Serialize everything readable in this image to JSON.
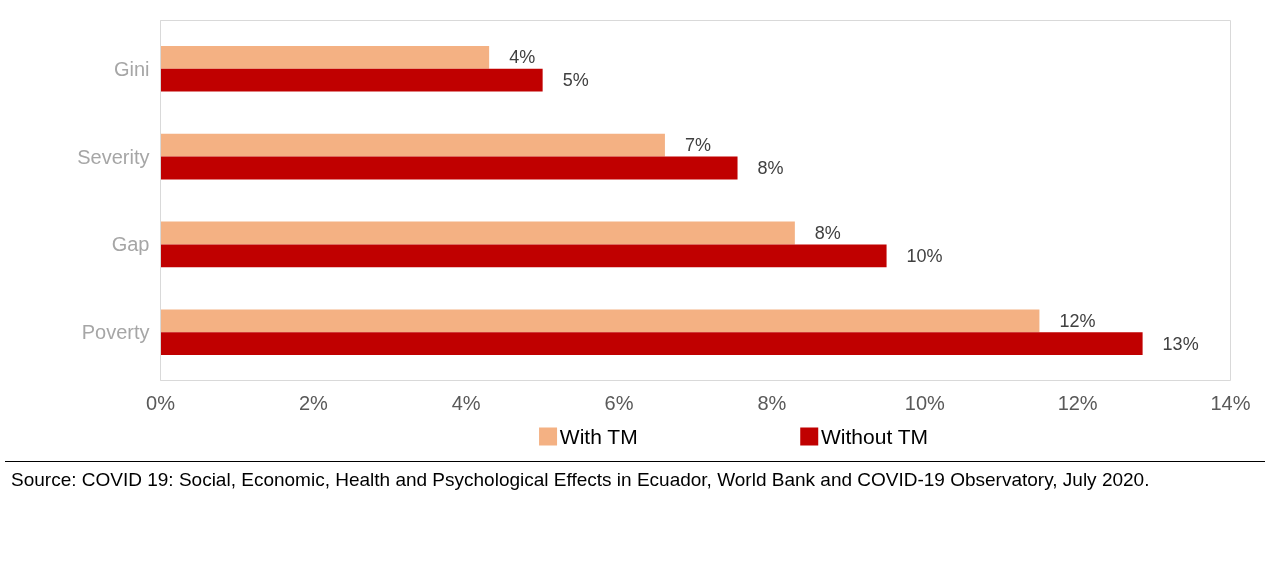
{
  "chart_data": {
    "type": "bar",
    "orientation": "horizontal",
    "categories": [
      "Gini",
      "Severity",
      "Gap",
      "Poverty"
    ],
    "series": [
      {
        "name": "With TM",
        "color": "#f4b183",
        "values": [
          4.3,
          6.6,
          8.3,
          11.5
        ],
        "value_labels": [
          "4%",
          "7%",
          "8%",
          "12%"
        ]
      },
      {
        "name": "Without TM",
        "color": "#c00000",
        "values": [
          5.0,
          7.55,
          9.5,
          12.85
        ],
        "value_labels": [
          "5%",
          "8%",
          "10%",
          "13%"
        ]
      }
    ],
    "xlim": [
      0,
      14
    ],
    "xticks": [
      {
        "value": 0,
        "label": "0%"
      },
      {
        "value": 2,
        "label": "2%"
      },
      {
        "value": 4,
        "label": "4%"
      },
      {
        "value": 6,
        "label": "6%"
      },
      {
        "value": 8,
        "label": "8%"
      },
      {
        "value": 10,
        "label": "10%"
      },
      {
        "value": 12,
        "label": "12%"
      },
      {
        "value": 14,
        "label": "14%"
      }
    ],
    "grid": false,
    "legend": "bottom",
    "annotations": [
      "Source: COVID 19: Social, Economic, Health and Psychological Effects in Ecuador, World Bank and COVID-19 Observatory, July 2020."
    ]
  }
}
